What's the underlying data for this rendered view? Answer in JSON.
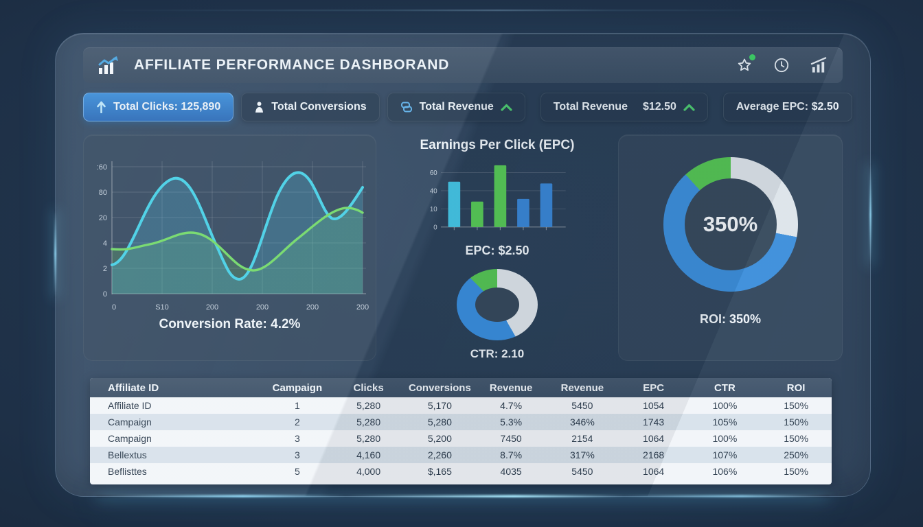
{
  "app": {
    "title": "AFFILIATE PERFORMANCE DASHBORAND",
    "logo_icon": "bar-chart-trend-icon",
    "toolbar_icons": [
      "star-icon",
      "clock-icon",
      "analytics-icon"
    ]
  },
  "colors": {
    "accent_blue": "#3A86D6",
    "accent_cyan": "#45C6E6",
    "accent_green": "#57C957",
    "donut_gray": "#DDE4EA",
    "chip_highlight": "#3F8FD8"
  },
  "stats": [
    {
      "icon": "arrow-up-icon",
      "label": "Total Clicks: 125,890",
      "highlight": true
    },
    {
      "icon": "person-icon",
      "label": "Total Conversions"
    },
    {
      "icon": "coin-icon",
      "label": "Total Revenue",
      "trend": "up"
    },
    {
      "label": "Total Revenue",
      "value": "$12.50",
      "trend": "up"
    },
    {
      "label": "Average EPC: $2.50"
    }
  ],
  "chart_data": [
    {
      "id": "conversion-trend",
      "type": "area",
      "caption": "Conversion Rate: 4.2%",
      "yticks": [
        ":60",
        "80",
        "20",
        "4",
        "2",
        "0"
      ],
      "xticks": [
        "0",
        "S10",
        "200",
        "200",
        "200",
        "200"
      ],
      "grid": true,
      "legend": "none",
      "series": [
        {
          "name": "clicks-wave",
          "color": "#49D0E6",
          "x_pct": [
            0,
            25,
            41,
            51,
            75,
            88,
            100
          ],
          "y_pct_of_plot": [
            23,
            89,
            41,
            13,
            94,
            60,
            82
          ]
        },
        {
          "name": "conversions-wave",
          "color": "#74D96B",
          "x_pct": [
            0,
            31,
            56,
            74,
            93,
            100
          ],
          "y_pct_of_plot": [
            36,
            48,
            19,
            44,
            66,
            64
          ]
        }
      ]
    },
    {
      "id": "epc-bars",
      "type": "bar",
      "title": "Earnings Per Click (EPC)",
      "caption": "EPC: $2.50",
      "yticks": [
        "60",
        "40",
        "10",
        "0"
      ],
      "values": [
        50,
        28,
        68,
        31,
        48
      ],
      "bar_colors": [
        "#45C6E6",
        "#57C957",
        "#57C957",
        "#3A86D6",
        "#3A86D6"
      ],
      "ylim": [
        0,
        75
      ]
    },
    {
      "id": "ctr-donut",
      "type": "pie",
      "caption": "CTR: 2.10",
      "segments": [
        {
          "label": "gray",
          "color": "#DDE4EA",
          "pct": 41.7
        },
        {
          "label": "blue",
          "color": "#3A8EDD",
          "pct": 45.8
        },
        {
          "label": "green",
          "color": "#55C455",
          "pct": 12.5
        }
      ]
    },
    {
      "id": "roi-donut",
      "type": "pie",
      "caption": "ROI: 350%",
      "center_label": "350%",
      "segments": [
        {
          "label": "gray",
          "color": "#DDE4EA",
          "pct": 28
        },
        {
          "label": "blue",
          "color": "#3D8FDB",
          "pct": 60.3
        },
        {
          "label": "green",
          "color": "#55C455",
          "pct": 11.7
        }
      ]
    }
  ],
  "table": {
    "headers": [
      "Affiliate ID",
      "Campaign",
      "Clicks",
      "Conversions",
      "Revenue",
      "Revenue",
      "EPC",
      "CTR",
      "ROI"
    ],
    "rows": [
      [
        "Affiliate ID",
        "1",
        "5,280",
        "5,170",
        "4.7%",
        "5450",
        "1054",
        "100%",
        "150%"
      ],
      [
        "Campaign",
        "2",
        "5,280",
        "5,280",
        "5.3%",
        "346%",
        "1743",
        "105%",
        "150%"
      ],
      [
        "Campaign",
        "3",
        "5,280",
        "5,200",
        "7450",
        "2154",
        "1064",
        "100%",
        "150%"
      ],
      [
        "Bellextus",
        "3",
        "4,160",
        "2,260",
        "8.7%",
        "317%",
        "2168",
        "107%",
        "250%"
      ],
      [
        "Beflisttes",
        "5",
        "4,000",
        "$,165",
        "4035",
        "5450",
        "1064",
        "106%",
        "150%"
      ]
    ]
  }
}
